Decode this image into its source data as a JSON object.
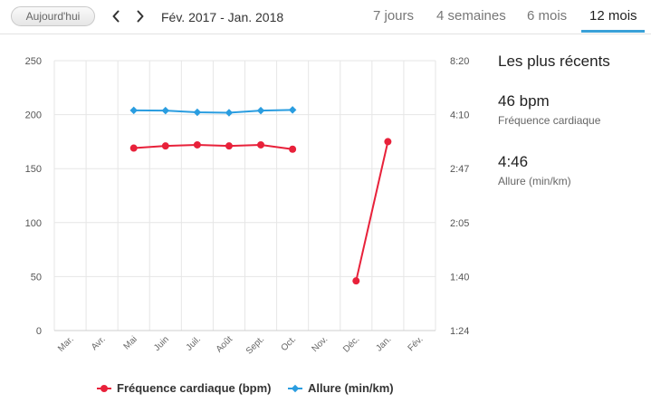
{
  "toolbar": {
    "today_label": "Aujourd'hui",
    "prev_icon": "chevron-left-icon",
    "next_icon": "chevron-right-icon",
    "date_range": "Fév. 2017 - Jan. 2018",
    "tabs": [
      {
        "label": "7 jours",
        "active": false
      },
      {
        "label": "4 semaines",
        "active": false
      },
      {
        "label": "6 mois",
        "active": false
      },
      {
        "label": "12 mois",
        "active": true
      }
    ],
    "accent_color": "#3aa1d8"
  },
  "recent": {
    "title": "Les plus récents",
    "heart_rate_value": "46 bpm",
    "heart_rate_label": "Fréquence cardiaque",
    "pace_value": "4:46",
    "pace_label": "Allure (min/km)"
  },
  "chart_data": {
    "type": "line",
    "categories": [
      "Mar.",
      "Avr.",
      "Mai",
      "Juin",
      "Juil.",
      "Août",
      "Sept.",
      "Oct.",
      "Nov.",
      "Déc.",
      "Jan.",
      "Fév."
    ],
    "left_axis": {
      "ticks": [
        "0",
        "50",
        "100",
        "150",
        "200",
        "250"
      ],
      "ylim": [
        0,
        250
      ]
    },
    "right_axis": {
      "ticks": [
        "1:24",
        "1:40",
        "2:05",
        "2:47",
        "4:10",
        "8:20"
      ]
    },
    "grid": {
      "vertical": true,
      "horizontal": true
    },
    "legend_position": "bottom-center",
    "series": [
      {
        "name": "Fréquence cardiaque (bpm)",
        "color": "#e8213a",
        "axis": "left",
        "values": [
          null,
          null,
          169,
          171,
          172,
          171,
          172,
          168,
          null,
          46,
          175,
          null
        ],
        "segments": [
          [
            2,
            7
          ],
          [
            9,
            10
          ]
        ]
      },
      {
        "name": "Allure (min/km)",
        "color": "#2a9de0",
        "axis": "right",
        "values": [
          null,
          null,
          "4:30",
          "4:29",
          "4:21",
          "4:19",
          "4:29",
          "4:32",
          null,
          null,
          null,
          null
        ],
        "segments": [
          [
            2,
            7
          ]
        ]
      }
    ]
  }
}
